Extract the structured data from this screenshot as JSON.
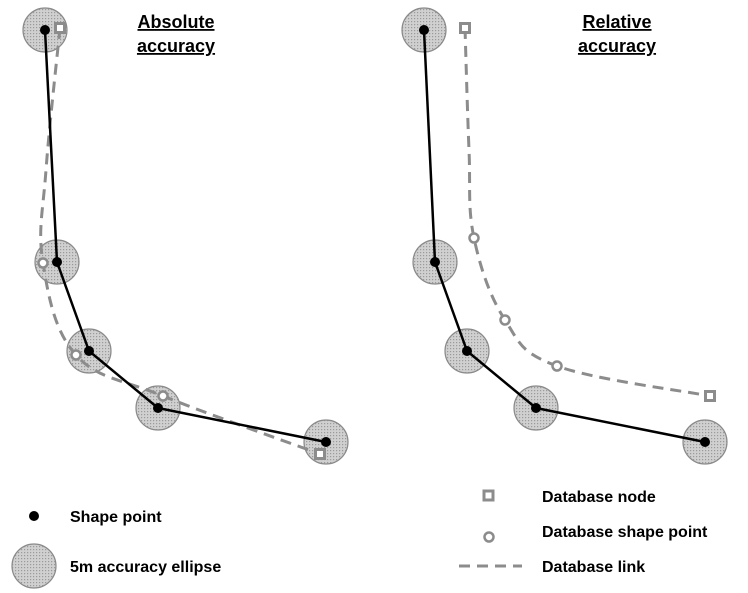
{
  "titles": {
    "absolute": [
      "Absolute",
      "accuracy"
    ],
    "relative": [
      "Relative",
      "accuracy"
    ]
  },
  "legend": {
    "shape_point": "Shape point",
    "accuracy_ellipse": "5m accuracy ellipse",
    "database_node": "Database node",
    "database_shape_point": "Database shape point",
    "database_link": "Database link"
  },
  "colors": {
    "shape_line": "#000000",
    "ellipse_fill": "#c8c8c8",
    "ellipse_stroke": "#8a8a8a",
    "database": "#8c8c8c"
  },
  "panels": {
    "absolute": {
      "shape_points": [
        [
          45,
          30
        ],
        [
          57,
          262
        ],
        [
          89,
          351
        ],
        [
          158,
          408
        ],
        [
          326,
          442
        ]
      ],
      "database_link": [
        [
          60,
          28
        ],
        [
          46,
          170
        ],
        [
          43,
          263
        ],
        [
          76,
          355
        ],
        [
          163,
          396
        ],
        [
          320,
          454
        ]
      ],
      "database_nodes": [
        [
          60,
          28
        ],
        [
          320,
          454
        ]
      ],
      "database_shape_points": [
        [
          43,
          263
        ],
        [
          76,
          355
        ],
        [
          163,
          396
        ]
      ]
    },
    "relative": {
      "shape_points": [
        [
          424,
          30
        ],
        [
          435,
          262
        ],
        [
          467,
          351
        ],
        [
          536,
          408
        ],
        [
          705,
          442
        ]
      ],
      "database_link": [
        [
          465,
          28
        ],
        [
          469,
          150
        ],
        [
          474,
          238
        ],
        [
          505,
          320
        ],
        [
          557,
          366
        ],
        [
          710,
          396
        ]
      ],
      "database_nodes": [
        [
          465,
          28
        ],
        [
          710,
          396
        ]
      ],
      "database_shape_points": [
        [
          474,
          238
        ],
        [
          505,
          320
        ],
        [
          557,
          366
        ]
      ]
    }
  }
}
